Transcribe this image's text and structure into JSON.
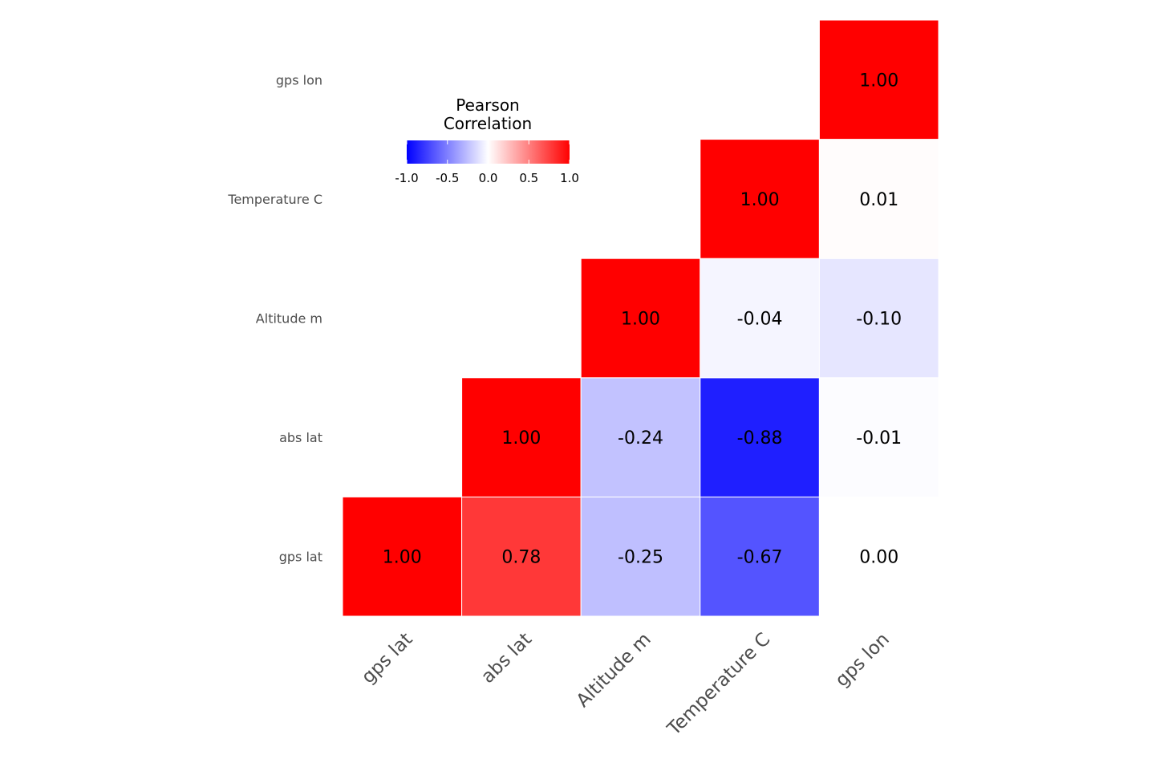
{
  "chart_data": {
    "type": "heatmap",
    "title": "",
    "variables": [
      "gps lat",
      "abs lat",
      "Altitude m",
      "Temperature C",
      "gps lon"
    ],
    "x_labels": [
      "gps lat",
      "abs lat",
      "Altitude m",
      "Temperature C",
      "gps lon"
    ],
    "y_labels": [
      "gps lat",
      "abs lat",
      "Altitude m",
      "Temperature C",
      "gps lon"
    ],
    "cells": [
      {
        "x": "gps lat",
        "y": "gps lat",
        "value": 1.0,
        "label": "1.00"
      },
      {
        "x": "abs lat",
        "y": "gps lat",
        "value": 0.78,
        "label": "0.78"
      },
      {
        "x": "Altitude m",
        "y": "gps lat",
        "value": -0.25,
        "label": "-0.25"
      },
      {
        "x": "Temperature C",
        "y": "gps lat",
        "value": -0.67,
        "label": "-0.67"
      },
      {
        "x": "gps lon",
        "y": "gps lat",
        "value": 0.0,
        "label": "0.00"
      },
      {
        "x": "abs lat",
        "y": "abs lat",
        "value": 1.0,
        "label": "1.00"
      },
      {
        "x": "Altitude m",
        "y": "abs lat",
        "value": -0.24,
        "label": "-0.24"
      },
      {
        "x": "Temperature C",
        "y": "abs lat",
        "value": -0.88,
        "label": "-0.88"
      },
      {
        "x": "gps lon",
        "y": "abs lat",
        "value": -0.01,
        "label": "-0.01"
      },
      {
        "x": "Altitude m",
        "y": "Altitude m",
        "value": 1.0,
        "label": "1.00"
      },
      {
        "x": "Temperature C",
        "y": "Altitude m",
        "value": -0.04,
        "label": "-0.04"
      },
      {
        "x": "gps lon",
        "y": "Altitude m",
        "value": -0.1,
        "label": "-0.10"
      },
      {
        "x": "Temperature C",
        "y": "Temperature C",
        "value": 1.0,
        "label": "1.00"
      },
      {
        "x": "gps lon",
        "y": "Temperature C",
        "value": 0.01,
        "label": "0.01"
      },
      {
        "x": "gps lon",
        "y": "gps lon",
        "value": 1.0,
        "label": "1.00"
      }
    ],
    "legend": {
      "title_lines": [
        "Pearson",
        "Correlation"
      ],
      "ticks": [
        -1.0,
        -0.5,
        0.0,
        0.5,
        1.0
      ],
      "tick_labels": [
        "-1.0",
        "-0.5",
        "0.0",
        "0.5",
        "1.0"
      ],
      "range": [
        -1.0,
        1.0
      ],
      "placement": "top-left"
    },
    "colors": {
      "low": "#0000ff",
      "mid": "#ffffff",
      "high": "#ff0000"
    },
    "grid": false
  }
}
